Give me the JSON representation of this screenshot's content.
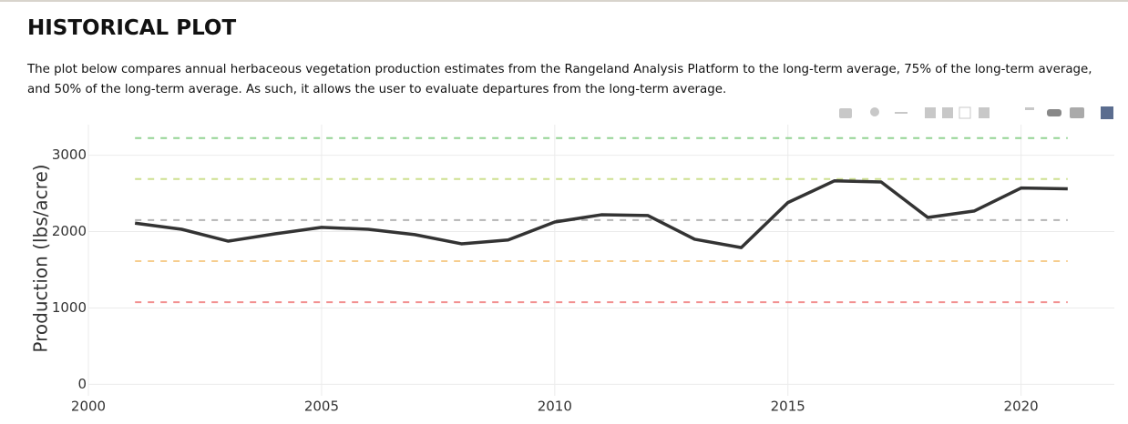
{
  "header": {
    "title": "HISTORICAL PLOT",
    "description": "The plot below compares annual herbaceous vegetation production estimates from the Rangeland Analysis Platform to the long-term average, 75% of the long-term average, and 50% of the long-term average. As such, it allows the user to evaluate departures from the long-term average."
  },
  "chart_data": {
    "type": "line",
    "y_label": "Production (lbs/acre)",
    "x": [
      2001,
      2002,
      2003,
      2004,
      2005,
      2006,
      2007,
      2008,
      2009,
      2010,
      2011,
      2012,
      2013,
      2014,
      2015,
      2016,
      2017,
      2018,
      2019,
      2020,
      2021
    ],
    "series": [
      {
        "color": "#333333",
        "values": [
          2110,
          2030,
          1875,
          1970,
          2055,
          2030,
          1960,
          1840,
          1890,
          2125,
          2220,
          2210,
          1900,
          1790,
          2380,
          2665,
          2650,
          2185,
          2270,
          2570,
          2560
        ]
      }
    ],
    "reference_lines": [
      {
        "value": 3225,
        "color": "#93d393"
      },
      {
        "value": 2688,
        "color": "#cde08f"
      },
      {
        "value": 2150,
        "color": "#b4b4b4"
      },
      {
        "value": 1613,
        "color": "#f6cd8e"
      },
      {
        "value": 1075,
        "color": "#f29090"
      }
    ],
    "xlim": [
      2000,
      2022
    ],
    "xticks": [
      2000,
      2005,
      2010,
      2015,
      2020
    ],
    "ylim": [
      -150,
      3400
    ],
    "yticks": [
      0,
      1000,
      2000,
      3000
    ],
    "grid": true
  }
}
